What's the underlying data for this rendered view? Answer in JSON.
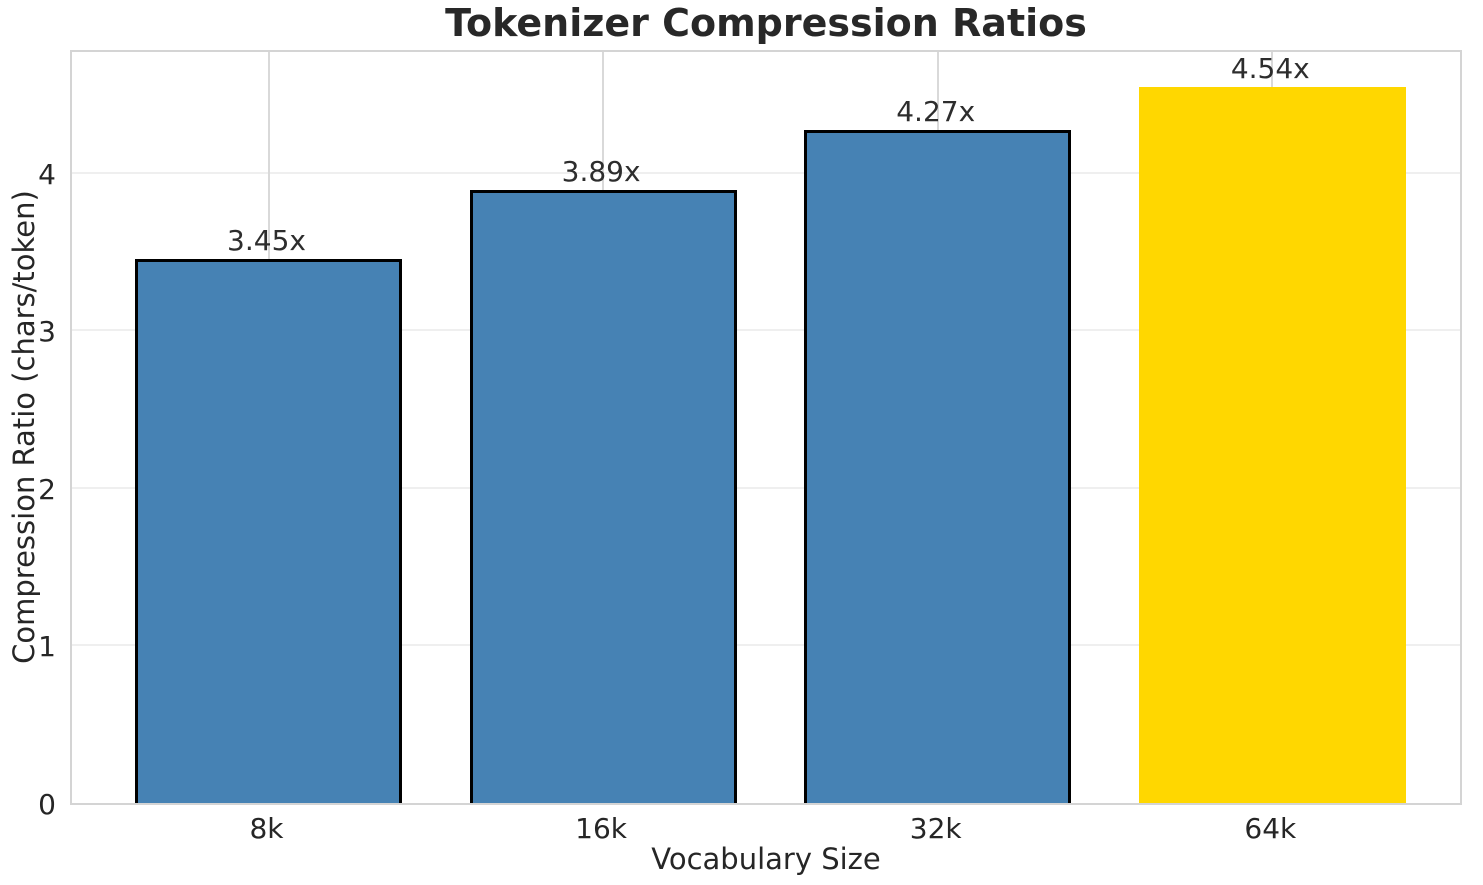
{
  "chart_data": {
    "type": "bar",
    "title": "Tokenizer Compression Ratios",
    "xlabel": "Vocabulary Size",
    "ylabel": "Compression Ratio (chars/token)",
    "categories": [
      "8k",
      "16k",
      "32k",
      "64k"
    ],
    "values": [
      3.45,
      3.89,
      4.27,
      4.54
    ],
    "bar_labels": [
      "3.45x",
      "3.89x",
      "4.27x",
      "4.54x"
    ],
    "bar_colors": [
      "#4682B4",
      "#4682B4",
      "#4682B4",
      "#FFD700"
    ],
    "bar_edge_colors": [
      "#000000",
      "#000000",
      "#000000",
      "none"
    ],
    "default_bar_color": "#4682B4",
    "highlight_bar_color": "#FFD700",
    "ylim": [
      0,
      4.79
    ],
    "yticks": [
      0,
      1,
      2,
      3,
      4
    ],
    "ytick_labels": [
      "0",
      "1",
      "2",
      "3",
      "4"
    ],
    "grid": "both",
    "legend": "none"
  }
}
